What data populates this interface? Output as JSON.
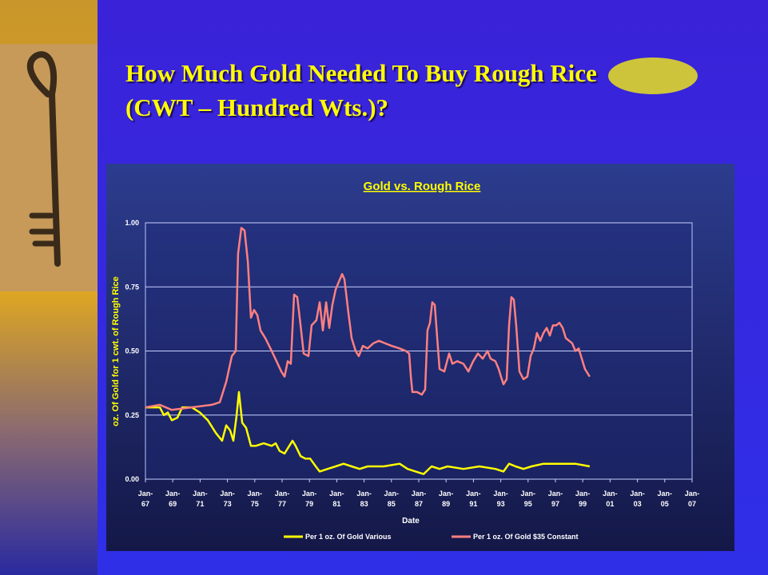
{
  "slide": {
    "title": "How Much Gold Needed To Buy Rough Rice (CWT – Hundred Wts.)?"
  },
  "chart_data": {
    "type": "line",
    "title": "Gold vs. Rough Rice",
    "x_label": "Date",
    "y_label": "oz. Of Gold for 1 cwt. of Rough Rice",
    "xlim": [
      1967,
      2007
    ],
    "ylim": [
      0,
      1
    ],
    "xticks": [
      {
        "value": 1967,
        "label": "Jan-67"
      },
      {
        "value": 1969,
        "label": "Jan-69"
      },
      {
        "value": 1971,
        "label": "Jan-71"
      },
      {
        "value": 1973,
        "label": "Jan-73"
      },
      {
        "value": 1975,
        "label": "Jan-75"
      },
      {
        "value": 1977,
        "label": "Jan-77"
      },
      {
        "value": 1979,
        "label": "Jan-79"
      },
      {
        "value": 1981,
        "label": "Jan-81"
      },
      {
        "value": 1983,
        "label": "Jan-83"
      },
      {
        "value": 1985,
        "label": "Jan-85"
      },
      {
        "value": 1987,
        "label": "Jan-87"
      },
      {
        "value": 1989,
        "label": "Jan-89"
      },
      {
        "value": 1991,
        "label": "Jan-91"
      },
      {
        "value": 1993,
        "label": "Jan-93"
      },
      {
        "value": 1995,
        "label": "Jan-95"
      },
      {
        "value": 1997,
        "label": "Jan-97"
      },
      {
        "value": 1999,
        "label": "Jan-99"
      },
      {
        "value": 2001,
        "label": "Jan-01"
      },
      {
        "value": 2003,
        "label": "Jan-03"
      },
      {
        "value": 2005,
        "label": "Jan-05"
      },
      {
        "value": 2007,
        "label": "Jan-07"
      }
    ],
    "yticks": [
      {
        "value": 0,
        "label": "0.00"
      },
      0.25,
      {
        "value": 0.5,
        "label": "0.50"
      },
      0.75,
      {
        "value": 1,
        "label": "1.00"
      }
    ],
    "grid": true,
    "series": [
      {
        "name": "Per 1 oz. Of Gold Various",
        "color": "#ffff00",
        "x": [
          1967.0,
          1968.05,
          1968.35,
          1968.64,
          1968.93,
          1969.34,
          1969.69,
          1970.39,
          1970.98,
          1971.56,
          1972.15,
          1972.61,
          1972.91,
          1973.2,
          1973.43,
          1973.67,
          1973.84,
          1974.08,
          1974.37,
          1974.72,
          1975.07,
          1975.65,
          1976.24,
          1976.53,
          1976.82,
          1977.18,
          1977.41,
          1977.76,
          1977.99,
          1978.35,
          1978.7,
          1979.05,
          1979.46,
          1979.75,
          1980.33,
          1980.92,
          1981.5,
          1982.09,
          1982.67,
          1983.26,
          1984.43,
          1985.6,
          1986.18,
          1986.77,
          1987.35,
          1987.94,
          1988.52,
          1989.11,
          1990.27,
          1991.44,
          1992.61,
          1993.2,
          1993.61,
          1994.08,
          1994.66,
          1995.25,
          1996.12,
          1997.29,
          1998.46,
          1999.51
        ],
        "values": [
          0.28,
          0.28,
          0.25,
          0.26,
          0.23,
          0.24,
          0.28,
          0.28,
          0.26,
          0.23,
          0.18,
          0.15,
          0.21,
          0.19,
          0.15,
          0.25,
          0.34,
          0.22,
          0.2,
          0.13,
          0.13,
          0.14,
          0.13,
          0.14,
          0.11,
          0.1,
          0.12,
          0.15,
          0.13,
          0.09,
          0.08,
          0.08,
          0.05,
          0.03,
          0.04,
          0.05,
          0.06,
          0.05,
          0.04,
          0.05,
          0.05,
          0.06,
          0.04,
          0.03,
          0.02,
          0.05,
          0.04,
          0.05,
          0.04,
          0.05,
          0.04,
          0.03,
          0.06,
          0.05,
          0.04,
          0.05,
          0.06,
          0.06,
          0.06,
          0.05
        ]
      },
      {
        "name": "Per 1 oz. Of Gold $35 Constant",
        "color": "#ff8080",
        "x": [
          1967.0,
          1968.05,
          1968.93,
          1971.85,
          1972.44,
          1972.91,
          1973.32,
          1973.61,
          1973.78,
          1974.02,
          1974.25,
          1974.49,
          1974.72,
          1974.95,
          1975.19,
          1975.42,
          1975.77,
          1976.24,
          1976.59,
          1976.94,
          1977.18,
          1977.41,
          1977.64,
          1977.88,
          1978.11,
          1978.35,
          1978.58,
          1978.93,
          1979.16,
          1979.51,
          1979.75,
          1979.98,
          1980.22,
          1980.45,
          1980.68,
          1980.92,
          1981.15,
          1981.39,
          1981.56,
          1981.85,
          1982.09,
          1982.38,
          1982.61,
          1982.91,
          1983.26,
          1983.67,
          1984.08,
          1984.54,
          1985.01,
          1985.6,
          1986.06,
          1986.3,
          1986.42,
          1986.53,
          1986.88,
          1987.23,
          1987.47,
          1987.64,
          1987.82,
          1987.99,
          1988.17,
          1988.35,
          1988.52,
          1988.87,
          1989.22,
          1989.46,
          1989.81,
          1990.27,
          1990.63,
          1990.98,
          1991.33,
          1991.68,
          1992.03,
          1992.26,
          1992.61,
          1992.85,
          1993.02,
          1993.2,
          1993.43,
          1993.61,
          1993.78,
          1993.96,
          1994.13,
          1994.37,
          1994.66,
          1994.95,
          1995.19,
          1995.42,
          1995.65,
          1995.89,
          1996.12,
          1996.36,
          1996.59,
          1996.82,
          1997.06,
          1997.29,
          1997.53,
          1997.76,
          1998.0,
          1998.23,
          1998.46,
          1998.7,
          1998.93,
          1999.16,
          1999.51
        ],
        "values": [
          0.28,
          0.29,
          0.27,
          0.29,
          0.3,
          0.38,
          0.48,
          0.5,
          0.88,
          0.98,
          0.97,
          0.85,
          0.63,
          0.66,
          0.64,
          0.58,
          0.55,
          0.5,
          0.46,
          0.42,
          0.4,
          0.46,
          0.45,
          0.72,
          0.71,
          0.6,
          0.49,
          0.48,
          0.6,
          0.62,
          0.69,
          0.58,
          0.69,
          0.59,
          0.68,
          0.74,
          0.77,
          0.8,
          0.78,
          0.65,
          0.55,
          0.5,
          0.48,
          0.52,
          0.51,
          0.53,
          0.54,
          0.53,
          0.52,
          0.51,
          0.5,
          0.49,
          0.4,
          0.34,
          0.34,
          0.33,
          0.35,
          0.58,
          0.61,
          0.69,
          0.68,
          0.55,
          0.43,
          0.42,
          0.49,
          0.45,
          0.46,
          0.45,
          0.42,
          0.46,
          0.49,
          0.47,
          0.5,
          0.47,
          0.46,
          0.43,
          0.4,
          0.37,
          0.39,
          0.6,
          0.71,
          0.7,
          0.6,
          0.42,
          0.39,
          0.4,
          0.48,
          0.51,
          0.57,
          0.54,
          0.57,
          0.59,
          0.56,
          0.6,
          0.6,
          0.61,
          0.59,
          0.55,
          0.54,
          0.53,
          0.5,
          0.51,
          0.47,
          0.43,
          0.4
        ]
      }
    ]
  }
}
